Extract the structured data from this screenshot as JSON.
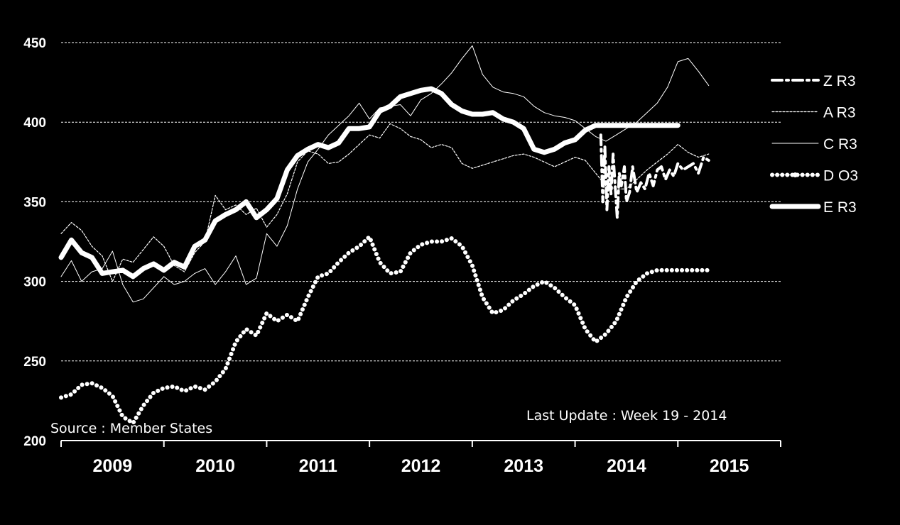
{
  "chart_data": {
    "type": "line",
    "ylim": [
      200,
      450
    ],
    "yticks": [
      200,
      250,
      300,
      350,
      400,
      450
    ],
    "xlim": [
      2009.0,
      2016.0
    ],
    "xtick_labels": [
      "2009",
      "2010",
      "2011",
      "2012",
      "2013",
      "2014",
      "2015"
    ],
    "grid": true,
    "legend_position": "right",
    "annotations": {
      "source": "Source : Member  States",
      "update": "Last Update :   Week 19 - 2014"
    },
    "series": [
      {
        "name": "Z R3",
        "style": "dash-dot",
        "color": "#ffffff",
        "x": [
          2014.25,
          2014.27,
          2014.29,
          2014.31,
          2014.33,
          2014.35,
          2014.37,
          2014.39,
          2014.41,
          2014.43,
          2014.45,
          2014.48,
          2014.5,
          2014.53,
          2014.56,
          2014.6,
          2014.64,
          2014.68,
          2014.72,
          2014.76,
          2014.8,
          2014.84,
          2014.88,
          2014.92,
          2014.96,
          2015.0,
          2015.05,
          2015.1,
          2015.15,
          2015.2,
          2015.25,
          2015.3
        ],
        "values": [
          392,
          350,
          385,
          345,
          372,
          355,
          380,
          360,
          340,
          368,
          360,
          372,
          350,
          356,
          372,
          356,
          362,
          358,
          368,
          360,
          370,
          372,
          364,
          370,
          366,
          374,
          370,
          372,
          374,
          368,
          378,
          376
        ]
      },
      {
        "name": "A R3",
        "style": "dotted",
        "color": "#ffffff",
        "x": [
          2009.0,
          2009.1,
          2009.2,
          2009.3,
          2009.4,
          2009.5,
          2009.6,
          2009.7,
          2009.8,
          2009.9,
          2010.0,
          2010.1,
          2010.2,
          2010.3,
          2010.4,
          2010.5,
          2010.6,
          2010.7,
          2010.8,
          2010.9,
          2011.0,
          2011.1,
          2011.2,
          2011.3,
          2011.4,
          2011.5,
          2011.6,
          2011.7,
          2011.8,
          2011.9,
          2012.0,
          2012.1,
          2012.2,
          2012.3,
          2012.4,
          2012.5,
          2012.6,
          2012.7,
          2012.8,
          2012.9,
          2013.0,
          2013.1,
          2013.2,
          2013.3,
          2013.4,
          2013.5,
          2013.6,
          2013.7,
          2013.8,
          2013.9,
          2014.0,
          2014.1,
          2014.2,
          2014.3,
          2014.4,
          2014.5,
          2014.6,
          2014.7,
          2014.8,
          2014.9,
          2015.0,
          2015.1,
          2015.2,
          2015.3
        ],
        "values": [
          330,
          337,
          332,
          322,
          316,
          300,
          314,
          312,
          320,
          328,
          322,
          310,
          306,
          318,
          325,
          354,
          345,
          348,
          342,
          346,
          334,
          342,
          355,
          375,
          382,
          380,
          374,
          375,
          380,
          386,
          392,
          390,
          399,
          396,
          391,
          389,
          384,
          386,
          384,
          374,
          371,
          373,
          375,
          377,
          379,
          380,
          378,
          375,
          372,
          375,
          378,
          376,
          368,
          360,
          358,
          358,
          364,
          370,
          375,
          380,
          386,
          381,
          378,
          380
        ]
      },
      {
        "name": "C R3",
        "style": "thin",
        "color": "#ffffff",
        "x": [
          2009.0,
          2009.1,
          2009.2,
          2009.3,
          2009.4,
          2009.5,
          2009.6,
          2009.7,
          2009.8,
          2009.9,
          2010.0,
          2010.1,
          2010.2,
          2010.3,
          2010.4,
          2010.5,
          2010.6,
          2010.7,
          2010.8,
          2010.9,
          2011.0,
          2011.1,
          2011.2,
          2011.3,
          2011.4,
          2011.5,
          2011.6,
          2011.7,
          2011.8,
          2011.9,
          2012.0,
          2012.1,
          2012.2,
          2012.3,
          2012.4,
          2012.5,
          2012.6,
          2012.7,
          2012.8,
          2012.9,
          2013.0,
          2013.1,
          2013.2,
          2013.3,
          2013.4,
          2013.5,
          2013.6,
          2013.7,
          2013.8,
          2013.9,
          2014.0,
          2014.1,
          2014.2,
          2014.3,
          2014.4,
          2014.5,
          2014.6,
          2014.7,
          2014.8,
          2014.9,
          2015.0,
          2015.1,
          2015.2,
          2015.3
        ],
        "values": [
          303,
          313,
          300,
          306,
          308,
          319,
          298,
          287,
          289,
          296,
          303,
          298,
          300,
          305,
          308,
          298,
          306,
          316,
          298,
          302,
          330,
          322,
          335,
          358,
          375,
          383,
          392,
          398,
          404,
          412,
          402,
          409,
          410,
          411,
          404,
          414,
          418,
          424,
          431,
          440,
          448,
          430,
          422,
          419,
          418,
          416,
          410,
          406,
          404,
          403,
          401,
          396,
          391,
          388,
          392,
          396,
          400,
          406,
          412,
          422,
          438,
          440,
          432,
          423
        ]
      },
      {
        "name": "D O3",
        "style": "dotted-thick",
        "color": "#ffffff",
        "x": [
          2009.0,
          2009.1,
          2009.2,
          2009.3,
          2009.4,
          2009.5,
          2009.6,
          2009.7,
          2009.8,
          2009.9,
          2010.0,
          2010.1,
          2010.2,
          2010.3,
          2010.4,
          2010.5,
          2010.6,
          2010.7,
          2010.8,
          2010.9,
          2011.0,
          2011.1,
          2011.2,
          2011.3,
          2011.4,
          2011.5,
          2011.6,
          2011.7,
          2011.8,
          2011.9,
          2012.0,
          2012.1,
          2012.2,
          2012.3,
          2012.4,
          2012.5,
          2012.6,
          2012.7,
          2012.8,
          2012.9,
          2013.0,
          2013.1,
          2013.2,
          2013.3,
          2013.4,
          2013.5,
          2013.6,
          2013.7,
          2013.8,
          2013.9,
          2014.0,
          2014.1,
          2014.2,
          2014.3,
          2014.4,
          2014.5,
          2014.6,
          2014.7,
          2014.8,
          2014.9,
          2015.0,
          2015.1,
          2015.2,
          2015.3
        ],
        "values": [
          227,
          229,
          235,
          236,
          233,
          228,
          215,
          211,
          222,
          230,
          233,
          234,
          231,
          234,
          232,
          237,
          245,
          262,
          270,
          266,
          280,
          275,
          279,
          275,
          290,
          303,
          305,
          312,
          318,
          322,
          328,
          312,
          305,
          306,
          318,
          323,
          325,
          325,
          327,
          322,
          310,
          290,
          280,
          282,
          288,
          292,
          297,
          300,
          296,
          290,
          285,
          270,
          262,
          267,
          275,
          290,
          300,
          305,
          307,
          307,
          307,
          307,
          307,
          307
        ]
      },
      {
        "name": "E R3",
        "style": "thick",
        "color": "#ffffff",
        "x": [
          2009.0,
          2009.1,
          2009.2,
          2009.3,
          2009.4,
          2009.5,
          2009.6,
          2009.7,
          2009.8,
          2009.9,
          2010.0,
          2010.1,
          2010.2,
          2010.3,
          2010.4,
          2010.5,
          2010.6,
          2010.7,
          2010.8,
          2010.9,
          2011.0,
          2011.1,
          2011.2,
          2011.3,
          2011.4,
          2011.5,
          2011.6,
          2011.7,
          2011.8,
          2011.9,
          2012.0,
          2012.1,
          2012.2,
          2012.3,
          2012.4,
          2012.5,
          2012.6,
          2012.7,
          2012.8,
          2012.9,
          2013.0,
          2013.1,
          2013.2,
          2013.3,
          2013.4,
          2013.5,
          2013.6,
          2013.7,
          2013.8,
          2013.9,
          2014.0,
          2014.1,
          2014.2,
          2014.3,
          2014.4,
          2014.5,
          2014.6,
          2014.7,
          2014.8,
          2014.9,
          2015.0
        ],
        "values": [
          315,
          326,
          318,
          315,
          305,
          306,
          307,
          303,
          308,
          311,
          307,
          312,
          309,
          322,
          326,
          338,
          342,
          345,
          350,
          340,
          345,
          352,
          370,
          379,
          383,
          386,
          384,
          387,
          396,
          396,
          397,
          407,
          410,
          416,
          418,
          420,
          421,
          418,
          411,
          407,
          405,
          405,
          406,
          402,
          400,
          396,
          383,
          381,
          383,
          387,
          389,
          395,
          398,
          398,
          398,
          398,
          398,
          398,
          398,
          398,
          398
        ]
      }
    ]
  }
}
